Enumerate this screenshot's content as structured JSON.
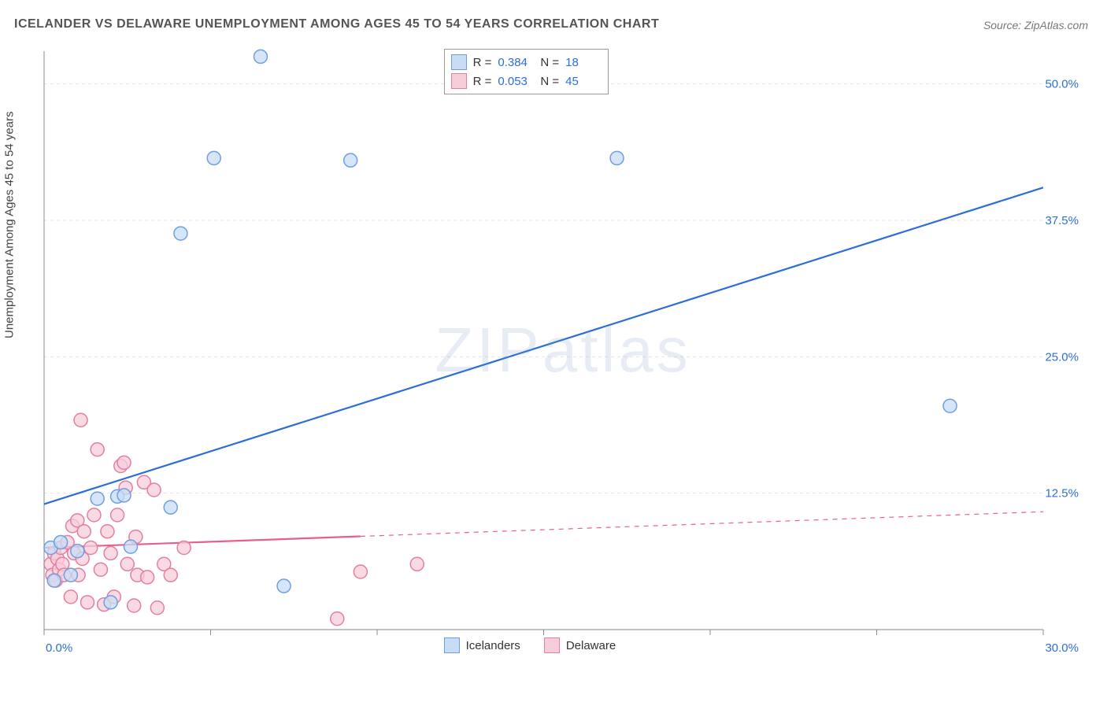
{
  "title": "ICELANDER VS DELAWARE UNEMPLOYMENT AMONG AGES 45 TO 54 YEARS CORRELATION CHART",
  "source": "Source: ZipAtlas.com",
  "ylabel": "Unemployment Among Ages 45 to 54 years",
  "watermark": "ZIPatlas",
  "chart": {
    "type": "scatter",
    "background_color": "#ffffff",
    "grid_color": "#e4e4e4",
    "axis_color": "#888888",
    "xlim": [
      0,
      30
    ],
    "ylim": [
      0,
      53
    ],
    "xtick_values": [
      0,
      5,
      10,
      15,
      20,
      25,
      30
    ],
    "xtick_labels_shown": {
      "0": "0.0%",
      "30": "30.0%"
    },
    "ytick_values": [
      12.5,
      25.0,
      37.5,
      50.0
    ],
    "ytick_labels": [
      "12.5%",
      "25.0%",
      "37.5%",
      "50.0%"
    ],
    "y_grid_dash": "4,4",
    "marker_radius": 8.5,
    "marker_stroke_width": 1.5,
    "trend_line_width": 2.2,
    "series": {
      "icelanders": {
        "label": "Icelanders",
        "fill": "#c8dcf5",
        "stroke": "#6f9fe0",
        "trend_stroke": "#2b6fd6",
        "R": "0.384",
        "N": "18",
        "trend": {
          "x1": 0,
          "y1": 11.5,
          "x2": 30,
          "y2": 40.5
        },
        "trend_dash_from_x": null,
        "points": [
          [
            0.2,
            7.5
          ],
          [
            0.3,
            4.5
          ],
          [
            0.5,
            8.0
          ],
          [
            0.8,
            5.0
          ],
          [
            1.0,
            7.2
          ],
          [
            1.6,
            12.0
          ],
          [
            2.0,
            2.5
          ],
          [
            2.2,
            12.2
          ],
          [
            2.4,
            12.3
          ],
          [
            2.6,
            7.6
          ],
          [
            3.8,
            11.2
          ],
          [
            4.1,
            36.3
          ],
          [
            5.1,
            43.2
          ],
          [
            6.5,
            52.5
          ],
          [
            7.2,
            4.0
          ],
          [
            9.2,
            43.0
          ],
          [
            17.2,
            43.2
          ],
          [
            27.2,
            20.5
          ]
        ]
      },
      "delaware": {
        "label": "Delaware",
        "fill": "#f7cdd9",
        "stroke": "#e37fa0",
        "trend_stroke": "#e85f8f",
        "R": "0.053",
        "N": "45",
        "trend": {
          "x1": 0,
          "y1": 7.5,
          "x2": 30,
          "y2": 10.8
        },
        "trend_dash_from_x": 9.5,
        "points": [
          [
            0.2,
            6.0
          ],
          [
            0.25,
            5.0
          ],
          [
            0.3,
            7.0
          ],
          [
            0.35,
            4.5
          ],
          [
            0.4,
            6.5
          ],
          [
            0.45,
            5.5
          ],
          [
            0.5,
            7.5
          ],
          [
            0.55,
            6.0
          ],
          [
            0.6,
            5.0
          ],
          [
            0.7,
            8.0
          ],
          [
            0.8,
            3.0
          ],
          [
            0.85,
            9.5
          ],
          [
            0.9,
            7.0
          ],
          [
            1.0,
            10.0
          ],
          [
            1.03,
            5.0
          ],
          [
            1.1,
            19.2
          ],
          [
            1.15,
            6.5
          ],
          [
            1.2,
            9.0
          ],
          [
            1.3,
            2.5
          ],
          [
            1.4,
            7.5
          ],
          [
            1.5,
            10.5
          ],
          [
            1.6,
            16.5
          ],
          [
            1.7,
            5.5
          ],
          [
            1.8,
            2.3
          ],
          [
            1.9,
            9.0
          ],
          [
            2.0,
            7.0
          ],
          [
            2.1,
            3.0
          ],
          [
            2.2,
            10.5
          ],
          [
            2.3,
            15.0
          ],
          [
            2.4,
            15.3
          ],
          [
            2.45,
            13.0
          ],
          [
            2.5,
            6.0
          ],
          [
            2.7,
            2.2
          ],
          [
            2.75,
            8.5
          ],
          [
            2.8,
            5.0
          ],
          [
            3.0,
            13.5
          ],
          [
            3.1,
            4.8
          ],
          [
            3.3,
            12.8
          ],
          [
            3.4,
            2.0
          ],
          [
            3.6,
            6.0
          ],
          [
            3.8,
            5.0
          ],
          [
            4.2,
            7.5
          ],
          [
            8.8,
            1.0
          ],
          [
            9.5,
            5.3
          ],
          [
            11.2,
            6.0
          ]
        ]
      }
    }
  },
  "legend_top": {
    "rows": [
      {
        "swatch": "icelanders",
        "R_label": "R =",
        "R_val": "0.384",
        "N_label": "N =",
        "N_val": "18"
      },
      {
        "swatch": "delaware",
        "R_label": "R =",
        "R_val": "0.053",
        "N_label": "N =",
        "N_val": "45"
      }
    ]
  },
  "legend_bottom": {
    "items": [
      {
        "swatch": "icelanders",
        "label": "Icelanders"
      },
      {
        "swatch": "delaware",
        "label": "Delaware"
      }
    ]
  }
}
